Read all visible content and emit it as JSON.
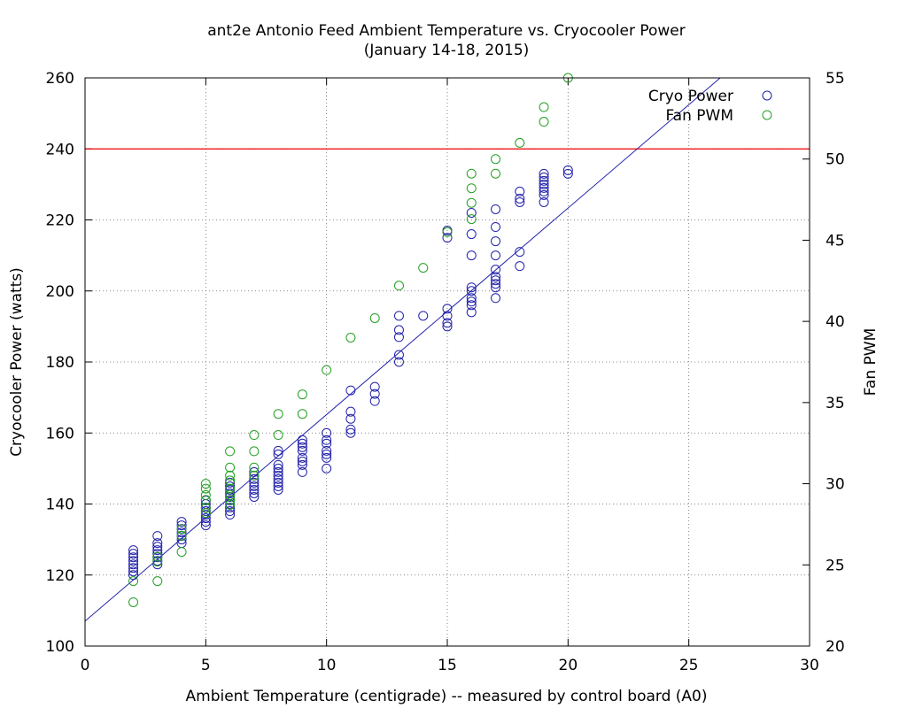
{
  "chart_data": {
    "type": "scatter",
    "title": "ant2e Antonio Feed Ambient Temperature vs. Cryocooler Power",
    "subtitle": "(January 14-18, 2015)",
    "xlabel": "Ambient Temperature (centigrade) -- measured by control board (A0)",
    "ylabel": "Cryocooler Power (watts)",
    "y2label": "Fan PWM",
    "xlim": [
      0,
      30
    ],
    "ylim": [
      100,
      260
    ],
    "y2lim": [
      20,
      55
    ],
    "xticks": [
      "0",
      "5",
      "10",
      "15",
      "20",
      "25",
      "30"
    ],
    "yticks": [
      "100",
      "120",
      "140",
      "160",
      "180",
      "200",
      "220",
      "240",
      "260"
    ],
    "y2ticks": [
      "20",
      "25",
      "30",
      "35",
      "40",
      "45",
      "50",
      "55"
    ],
    "grid": true,
    "legend_position": "top-right",
    "colors": {
      "cryo": "#2222aa",
      "fan": "#22a022",
      "threshold": "#ee0000",
      "fit": "#2222aa"
    },
    "threshold": {
      "y": 240
    },
    "fit_line": {
      "x": [
        0,
        26.3
      ],
      "y": [
        107,
        260
      ]
    },
    "series": [
      {
        "name": "Cryo Power",
        "axis": "y",
        "color": "#2222aa",
        "points": [
          [
            2,
            122
          ],
          [
            2,
            123
          ],
          [
            2,
            124
          ],
          [
            2,
            125
          ],
          [
            2,
            126
          ],
          [
            2,
            127
          ],
          [
            2,
            121
          ],
          [
            2,
            120
          ],
          [
            3,
            124
          ],
          [
            3,
            126
          ],
          [
            3,
            127
          ],
          [
            3,
            128
          ],
          [
            3,
            129
          ],
          [
            3,
            131
          ],
          [
            3,
            123
          ],
          [
            3,
            125
          ],
          [
            4,
            129
          ],
          [
            4,
            130
          ],
          [
            4,
            131
          ],
          [
            4,
            132
          ],
          [
            4,
            133
          ],
          [
            4,
            134
          ],
          [
            4,
            135
          ],
          [
            5,
            134
          ],
          [
            5,
            135
          ],
          [
            5,
            136
          ],
          [
            5,
            137
          ],
          [
            5,
            138
          ],
          [
            5,
            139
          ],
          [
            5,
            140
          ],
          [
            5,
            141
          ],
          [
            6,
            137
          ],
          [
            6,
            138
          ],
          [
            6,
            139
          ],
          [
            6,
            140
          ],
          [
            6,
            141
          ],
          [
            6,
            142
          ],
          [
            6,
            143
          ],
          [
            6,
            144
          ],
          [
            6,
            145
          ],
          [
            6,
            146
          ],
          [
            7,
            142
          ],
          [
            7,
            143
          ],
          [
            7,
            144
          ],
          [
            7,
            145
          ],
          [
            7,
            146
          ],
          [
            7,
            147
          ],
          [
            7,
            148
          ],
          [
            7,
            149
          ],
          [
            8,
            144
          ],
          [
            8,
            145
          ],
          [
            8,
            146
          ],
          [
            8,
            147
          ],
          [
            8,
            148
          ],
          [
            8,
            149
          ],
          [
            8,
            150
          ],
          [
            8,
            151
          ],
          [
            8,
            154
          ],
          [
            8,
            155
          ],
          [
            9,
            149
          ],
          [
            9,
            151
          ],
          [
            9,
            152
          ],
          [
            9,
            153
          ],
          [
            9,
            155
          ],
          [
            9,
            156
          ],
          [
            9,
            157
          ],
          [
            9,
            158
          ],
          [
            10,
            150
          ],
          [
            10,
            153
          ],
          [
            10,
            154
          ],
          [
            10,
            155
          ],
          [
            10,
            157
          ],
          [
            10,
            158
          ],
          [
            10,
            160
          ],
          [
            11,
            160
          ],
          [
            11,
            161
          ],
          [
            11,
            164
          ],
          [
            11,
            166
          ],
          [
            11,
            172
          ],
          [
            12,
            169
          ],
          [
            12,
            171
          ],
          [
            12,
            173
          ],
          [
            13,
            180
          ],
          [
            13,
            182
          ],
          [
            13,
            187
          ],
          [
            13,
            189
          ],
          [
            13,
            193
          ],
          [
            14,
            193
          ],
          [
            15,
            190
          ],
          [
            15,
            191
          ],
          [
            15,
            193
          ],
          [
            15,
            195
          ],
          [
            15,
            215
          ],
          [
            15,
            217
          ],
          [
            16,
            194
          ],
          [
            16,
            196
          ],
          [
            16,
            197
          ],
          [
            16,
            198
          ],
          [
            16,
            200
          ],
          [
            16,
            201
          ],
          [
            16,
            210
          ],
          [
            16,
            216
          ],
          [
            16,
            222
          ],
          [
            17,
            198
          ],
          [
            17,
            201
          ],
          [
            17,
            202
          ],
          [
            17,
            203
          ],
          [
            17,
            204
          ],
          [
            17,
            206
          ],
          [
            17,
            210
          ],
          [
            17,
            214
          ],
          [
            17,
            218
          ],
          [
            17,
            223
          ],
          [
            18,
            207
          ],
          [
            18,
            211
          ],
          [
            18,
            225
          ],
          [
            18,
            226
          ],
          [
            18,
            228
          ],
          [
            19,
            225
          ],
          [
            19,
            227
          ],
          [
            19,
            228
          ],
          [
            19,
            229
          ],
          [
            19,
            230
          ],
          [
            19,
            231
          ],
          [
            19,
            232
          ],
          [
            19,
            233
          ],
          [
            20,
            233
          ],
          [
            20,
            234
          ]
        ]
      },
      {
        "name": "Fan PWM",
        "axis": "y2",
        "color": "#22a022",
        "points": [
          [
            2,
            22.7
          ],
          [
            2,
            24
          ],
          [
            3,
            24
          ],
          [
            3,
            25.2
          ],
          [
            3,
            25.5
          ],
          [
            4,
            25.8
          ],
          [
            4,
            26.8
          ],
          [
            4,
            27.2
          ],
          [
            5,
            28.2
          ],
          [
            5,
            28.5
          ],
          [
            5,
            29
          ],
          [
            5,
            29.3
          ],
          [
            5,
            29.7
          ],
          [
            5,
            30
          ],
          [
            6,
            28.7
          ],
          [
            6,
            29
          ],
          [
            6,
            29.3
          ],
          [
            6,
            29.7
          ],
          [
            6,
            30.2
          ],
          [
            6,
            30.5
          ],
          [
            6,
            31
          ],
          [
            6,
            32
          ],
          [
            7,
            30.5
          ],
          [
            7,
            31
          ],
          [
            7,
            32
          ],
          [
            7,
            33
          ],
          [
            8,
            33
          ],
          [
            8,
            34.3
          ],
          [
            9,
            34.3
          ],
          [
            9,
            35.5
          ],
          [
            10,
            37
          ],
          [
            11,
            39
          ],
          [
            12,
            40.2
          ],
          [
            13,
            42.2
          ],
          [
            14,
            43.3
          ],
          [
            15,
            45.5
          ],
          [
            16,
            46.3
          ],
          [
            16,
            47.3
          ],
          [
            16,
            48.2
          ],
          [
            16,
            49.1
          ],
          [
            17,
            49.1
          ],
          [
            17,
            50
          ],
          [
            18,
            51
          ],
          [
            19,
            52.3
          ],
          [
            19,
            53.2
          ],
          [
            20,
            55
          ]
        ]
      }
    ]
  }
}
